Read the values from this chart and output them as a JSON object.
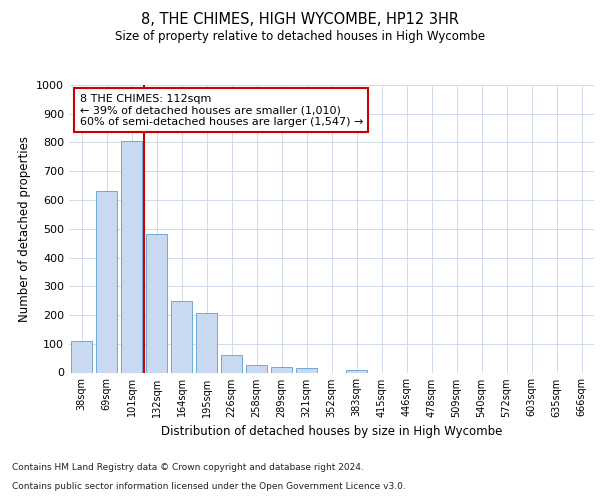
{
  "title1": "8, THE CHIMES, HIGH WYCOMBE, HP12 3HR",
  "title2": "Size of property relative to detached houses in High Wycombe",
  "xlabel": "Distribution of detached houses by size in High Wycombe",
  "ylabel": "Number of detached properties",
  "bar_labels": [
    "38sqm",
    "69sqm",
    "101sqm",
    "132sqm",
    "164sqm",
    "195sqm",
    "226sqm",
    "258sqm",
    "289sqm",
    "321sqm",
    "352sqm",
    "383sqm",
    "415sqm",
    "446sqm",
    "478sqm",
    "509sqm",
    "540sqm",
    "572sqm",
    "603sqm",
    "635sqm",
    "666sqm"
  ],
  "bar_values": [
    110,
    630,
    805,
    480,
    250,
    207,
    60,
    27,
    20,
    14,
    0,
    10,
    0,
    0,
    0,
    0,
    0,
    0,
    0,
    0,
    0
  ],
  "bar_color": "#c9d9f0",
  "bar_edge_color": "#6fa8d8",
  "property_line_x": 2.5,
  "property_sqm": 112,
  "annotation_title": "8 THE CHIMES: 112sqm",
  "annotation_line1": "← 39% of detached houses are smaller (1,010)",
  "annotation_line2": "60% of semi-detached houses are larger (1,547) →",
  "annotation_box_color": "#ffffff",
  "annotation_box_edge": "#cc0000",
  "ylim": [
    0,
    1000
  ],
  "yticks": [
    0,
    100,
    200,
    300,
    400,
    500,
    600,
    700,
    800,
    900,
    1000
  ],
  "grid_color": "#c8d4e8",
  "footer1": "Contains HM Land Registry data © Crown copyright and database right 2024.",
  "footer2": "Contains public sector information licensed under the Open Government Licence v3.0.",
  "bg_color": "#ffffff"
}
